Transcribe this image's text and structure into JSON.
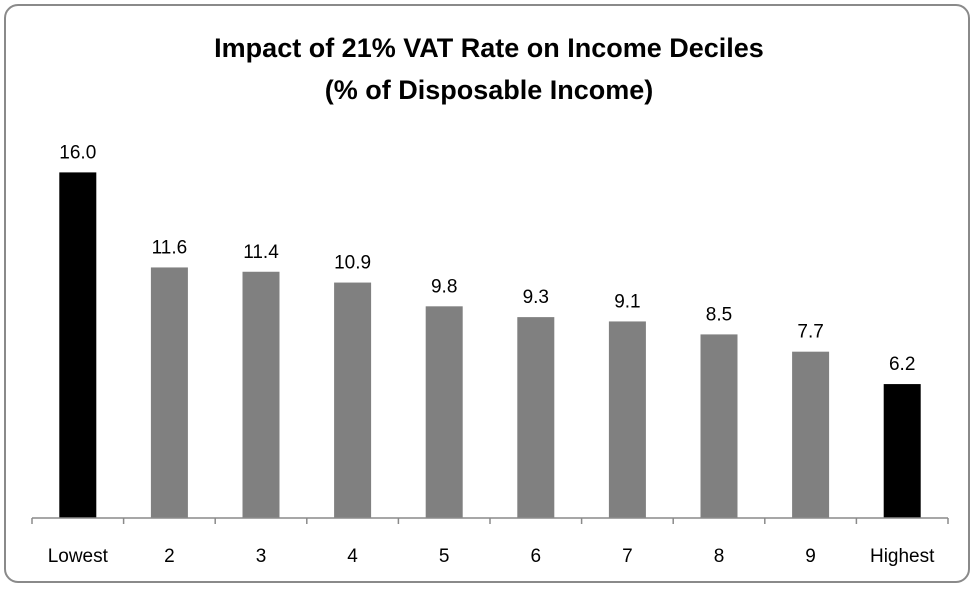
{
  "chart_data": {
    "type": "bar",
    "title_lines": [
      "Impact of 21% VAT Rate on Income Deciles",
      "(% of Disposable Income)"
    ],
    "categories": [
      "Lowest",
      "2",
      "3",
      "4",
      "5",
      "6",
      "7",
      "8",
      "9",
      "Highest"
    ],
    "values": [
      16.0,
      11.6,
      11.4,
      10.9,
      9.8,
      9.3,
      9.1,
      8.5,
      7.7,
      6.2
    ],
    "value_labels": [
      "16.0",
      "11.6",
      "11.4",
      "10.9",
      "9.8",
      "9.3",
      "9.1",
      "8.5",
      "7.7",
      "6.2"
    ],
    "highlight": [
      true,
      false,
      false,
      false,
      false,
      false,
      false,
      false,
      false,
      true
    ],
    "xlabel": "",
    "ylabel": "",
    "ylim": [
      0,
      16
    ],
    "colors": {
      "highlight": "#000000",
      "normal": "#808080",
      "axis": "#8a8a8a"
    }
  }
}
